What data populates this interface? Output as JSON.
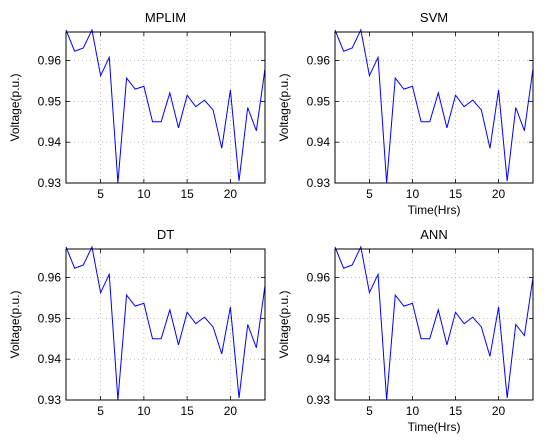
{
  "chart_data": [
    {
      "type": "line",
      "title": "MPLIM",
      "xlabel": "",
      "ylabel": "Voltage(p.u.)",
      "xlim": [
        1,
        24
      ],
      "ylim": [
        0.93,
        0.967
      ],
      "xticks": [
        5,
        10,
        15,
        20
      ],
      "yticks": [
        0.93,
        0.94,
        0.95,
        0.96
      ],
      "grid": true,
      "line_color": "#0000ff",
      "series": [
        {
          "x": [
            1,
            2,
            3,
            4,
            5,
            6,
            7,
            8,
            9,
            10,
            11,
            12,
            13,
            14,
            15,
            16,
            17,
            18,
            19,
            20,
            21,
            22,
            23,
            24
          ],
          "values": [
            0.9675,
            0.9623,
            0.9631,
            0.9675,
            0.9563,
            0.9608,
            0.93,
            0.9557,
            0.953,
            0.9537,
            0.945,
            0.945,
            0.9521,
            0.9435,
            0.9515,
            0.9487,
            0.9503,
            0.9479,
            0.9385,
            0.9528,
            0.9305,
            0.9485,
            0.9428,
            0.958
          ]
        }
      ]
    },
    {
      "type": "line",
      "title": "SVM",
      "xlabel": "Time(Hrs)",
      "ylabel": "Voltage(p.u.)",
      "xlim": [
        1,
        24
      ],
      "ylim": [
        0.93,
        0.967
      ],
      "xticks": [
        5,
        10,
        15,
        20
      ],
      "yticks": [
        0.93,
        0.94,
        0.95,
        0.96
      ],
      "grid": true,
      "line_color": "#0000ff",
      "series": [
        {
          "x": [
            1,
            2,
            3,
            4,
            5,
            6,
            7,
            8,
            9,
            10,
            11,
            12,
            13,
            14,
            15,
            16,
            17,
            18,
            19,
            20,
            21,
            22,
            23,
            24
          ],
          "values": [
            0.9675,
            0.9623,
            0.9631,
            0.9675,
            0.9563,
            0.9608,
            0.93,
            0.9557,
            0.953,
            0.9537,
            0.945,
            0.945,
            0.9521,
            0.9435,
            0.9515,
            0.9487,
            0.9503,
            0.9479,
            0.9385,
            0.9528,
            0.9305,
            0.9485,
            0.9428,
            0.958
          ]
        }
      ]
    },
    {
      "type": "line",
      "title": "DT",
      "xlabel": "",
      "ylabel": "Voltage(p.u.)",
      "xlim": [
        1,
        24
      ],
      "ylim": [
        0.93,
        0.967
      ],
      "xticks": [
        5,
        10,
        15,
        20
      ],
      "yticks": [
        0.93,
        0.94,
        0.95,
        0.96
      ],
      "grid": true,
      "line_color": "#0000ff",
      "series": [
        {
          "x": [
            1,
            2,
            3,
            4,
            5,
            6,
            7,
            8,
            9,
            10,
            11,
            12,
            13,
            14,
            15,
            16,
            17,
            18,
            19,
            20,
            21,
            22,
            23,
            24
          ],
          "values": [
            0.9675,
            0.9623,
            0.9631,
            0.9675,
            0.9563,
            0.9608,
            0.93,
            0.9557,
            0.953,
            0.9537,
            0.945,
            0.945,
            0.9521,
            0.9435,
            0.9515,
            0.9487,
            0.9503,
            0.9479,
            0.9413,
            0.9528,
            0.9305,
            0.9485,
            0.9428,
            0.958
          ]
        }
      ]
    },
    {
      "type": "line",
      "title": "ANN",
      "xlabel": "Time(Hrs)",
      "ylabel": "Voltage(p.u.)",
      "xlim": [
        1,
        24
      ],
      "ylim": [
        0.93,
        0.967
      ],
      "xticks": [
        5,
        10,
        15,
        20
      ],
      "yticks": [
        0.93,
        0.94,
        0.95,
        0.96
      ],
      "grid": true,
      "line_color": "#0000ff",
      "series": [
        {
          "x": [
            1,
            2,
            3,
            4,
            5,
            6,
            7,
            8,
            9,
            10,
            11,
            12,
            13,
            14,
            15,
            16,
            17,
            18,
            19,
            20,
            21,
            22,
            23,
            24
          ],
          "values": [
            0.9675,
            0.9623,
            0.9631,
            0.9675,
            0.9563,
            0.9608,
            0.93,
            0.9557,
            0.953,
            0.9537,
            0.945,
            0.945,
            0.9521,
            0.9435,
            0.9515,
            0.9487,
            0.9503,
            0.9479,
            0.9407,
            0.9528,
            0.9305,
            0.9485,
            0.9458,
            0.96
          ]
        }
      ]
    }
  ]
}
